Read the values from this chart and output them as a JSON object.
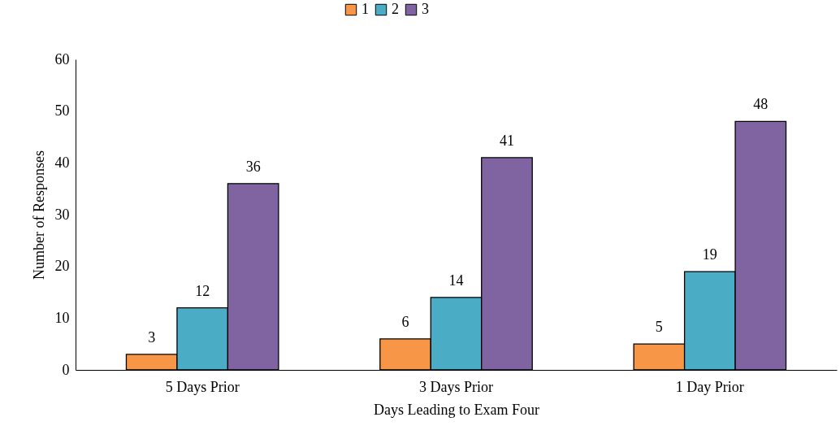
{
  "chart_data": {
    "type": "bar",
    "xlabel": "Days Leading to Exam  Four",
    "ylabel": "Number of Responses",
    "categories": [
      "5 Days Prior",
      "3 Days Prior",
      "1 Day Prior"
    ],
    "series": [
      {
        "name": "1",
        "color": "#f79646",
        "values": [
          3,
          6,
          5
        ]
      },
      {
        "name": "2",
        "color": "#4bacc6",
        "values": [
          12,
          14,
          19
        ]
      },
      {
        "name": "3",
        "color": "#8064a2",
        "values": [
          36,
          41,
          48
        ]
      }
    ],
    "ylim": [
      0,
      60
    ],
    "yticks": [
      0,
      10,
      20,
      30,
      40,
      50,
      60
    ],
    "grid": false,
    "legend": "top",
    "data_labels": true
  }
}
